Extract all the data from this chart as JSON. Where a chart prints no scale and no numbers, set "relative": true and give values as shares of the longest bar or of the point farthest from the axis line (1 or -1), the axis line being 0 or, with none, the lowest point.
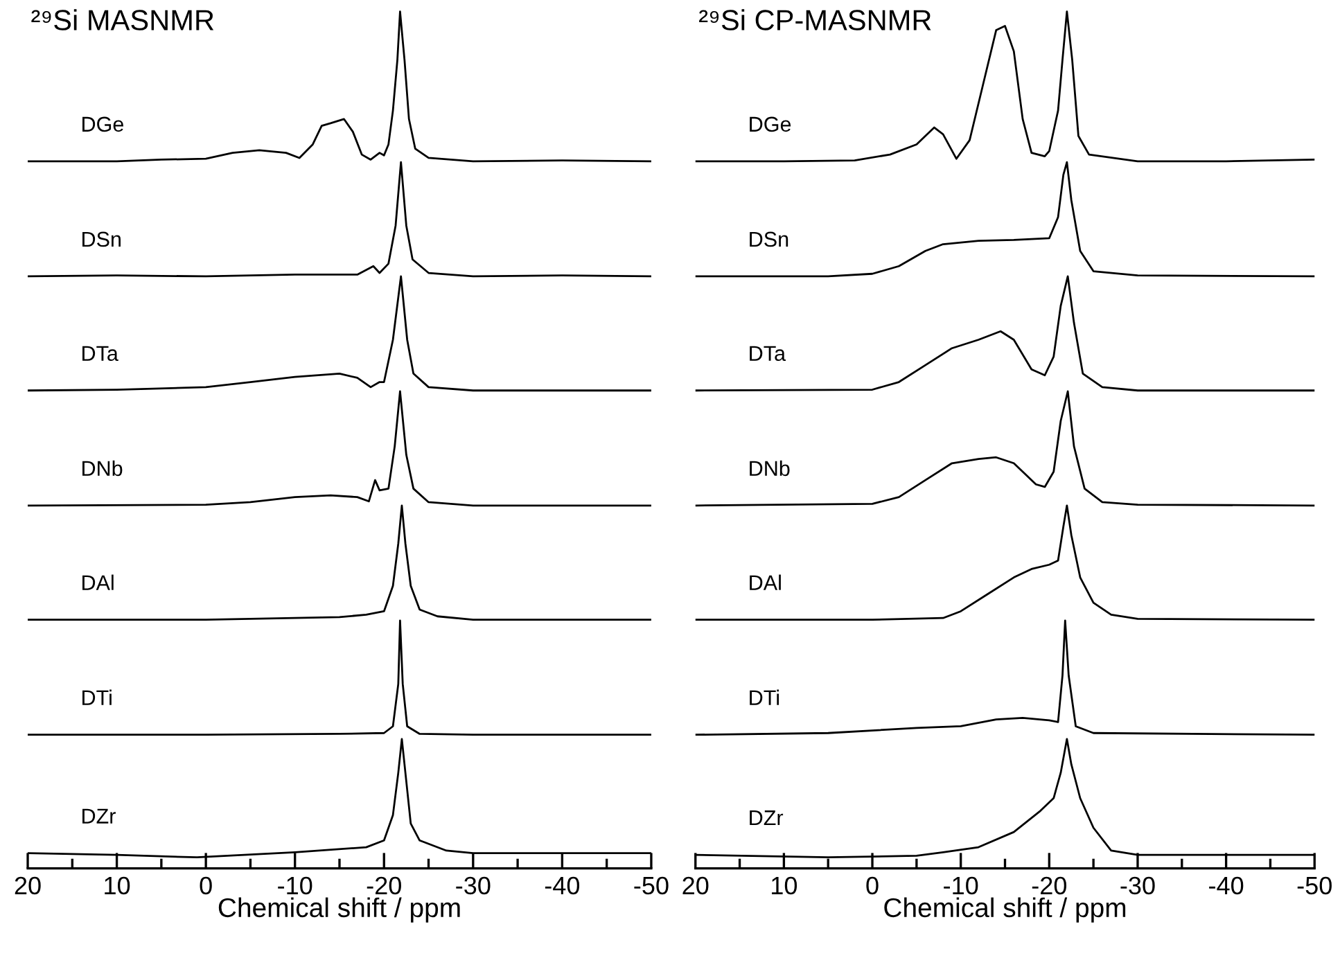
{
  "chart_data": [
    {
      "type": "line",
      "title": "²⁹Si MASNMR",
      "xlabel": "Chemical shift / ppm",
      "relative": true,
      "xlim": [
        20,
        -50
      ],
      "xticks": [
        20,
        {
          "value": 15,
          "label": null
        },
        10,
        {
          "value": 5,
          "label": null
        },
        0,
        {
          "value": -5,
          "label": null
        },
        -10,
        {
          "value": -15,
          "label": null
        },
        -20,
        {
          "value": -25,
          "label": null
        },
        -30,
        {
          "value": -35,
          "label": null
        },
        -40,
        {
          "value": -45,
          "label": null
        },
        -50
      ],
      "grid": false,
      "legend": false,
      "marker": "none",
      "line_style": "solid",
      "series": [
        {
          "name": "DGe",
          "color": "#000000",
          "x": [
            20,
            10,
            5,
            0,
            -3,
            -6,
            -9,
            -10.5,
            -12,
            -13,
            -14,
            -15.5,
            -16.5,
            -17.5,
            -18.5,
            -19.5,
            -20,
            -20.5,
            -21,
            -21.5,
            -21.8,
            -22.3,
            -22.8,
            -23.5,
            -25,
            -30,
            -40,
            -50
          ],
          "values": [
            0.823,
            0.823,
            0.825,
            0.826,
            0.833,
            0.836,
            0.833,
            0.827,
            0.843,
            0.865,
            0.868,
            0.873,
            0.858,
            0.831,
            0.825,
            0.833,
            0.83,
            0.843,
            0.883,
            0.943,
            1.0,
            0.943,
            0.873,
            0.838,
            0.827,
            0.823,
            0.824,
            0.823
          ]
        },
        {
          "name": "DSn",
          "color": "#000000",
          "x": [
            20,
            10,
            0,
            -10,
            -17,
            -18.8,
            -19.5,
            -20.5,
            -21.3,
            -21.9,
            -22.5,
            -23.2,
            -25,
            -30,
            -40,
            -50
          ],
          "values": [
            0.687,
            0.688,
            0.687,
            0.689,
            0.689,
            0.699,
            0.691,
            0.702,
            0.747,
            0.822,
            0.747,
            0.707,
            0.691,
            0.687,
            0.688,
            0.687
          ]
        },
        {
          "name": "DTa",
          "color": "#000000",
          "x": [
            20,
            10,
            0,
            -5,
            -10,
            -15,
            -17,
            -18.5,
            -19.5,
            -20,
            -21,
            -21.9,
            -22.6,
            -23.3,
            -25,
            -30,
            -40,
            -50
          ],
          "values": [
            0.552,
            0.553,
            0.556,
            0.562,
            0.568,
            0.572,
            0.567,
            0.556,
            0.562,
            0.562,
            0.612,
            0.687,
            0.612,
            0.572,
            0.556,
            0.552,
            0.552,
            0.552
          ]
        },
        {
          "name": "DNb",
          "color": "#000000",
          "x": [
            20,
            0,
            -5,
            -10,
            -14,
            -17,
            -18.3,
            -19,
            -19.5,
            -20.5,
            -21.2,
            -21.8,
            -22.5,
            -23.3,
            -25,
            -30,
            -50
          ],
          "values": [
            0.416,
            0.417,
            0.42,
            0.426,
            0.428,
            0.426,
            0.421,
            0.446,
            0.434,
            0.436,
            0.486,
            0.551,
            0.476,
            0.436,
            0.42,
            0.416,
            0.416
          ]
        },
        {
          "name": "DAl",
          "color": "#000000",
          "x": [
            20,
            0,
            -10,
            -15,
            -18,
            -20,
            -21,
            -21.6,
            -22,
            -22.4,
            -23,
            -24,
            -26,
            -30,
            -50
          ],
          "values": [
            0.281,
            0.281,
            0.283,
            0.284,
            0.287,
            0.291,
            0.321,
            0.371,
            0.416,
            0.371,
            0.321,
            0.293,
            0.285,
            0.281,
            0.281
          ]
        },
        {
          "name": "DTi",
          "color": "#000000",
          "x": [
            20,
            0,
            -15,
            -20,
            -21,
            -21.6,
            -21.8,
            -22.1,
            -22.6,
            -24,
            -30,
            -50
          ],
          "values": [
            0.145,
            0.145,
            0.146,
            0.147,
            0.155,
            0.205,
            0.28,
            0.205,
            0.155,
            0.146,
            0.145,
            0.145
          ]
        },
        {
          "name": "DZr",
          "color": "#000000",
          "x": [
            20,
            10,
            1,
            -10,
            -18,
            -20,
            -21,
            -21.6,
            -22,
            -22.5,
            -23,
            -24,
            -27,
            -30,
            -50
          ],
          "values": [
            0.005,
            0.003,
            0.0,
            0.006,
            0.012,
            0.02,
            0.05,
            0.1,
            0.14,
            0.09,
            0.04,
            0.02,
            0.008,
            0.005,
            0.005
          ]
        }
      ]
    },
    {
      "type": "line",
      "title": "²⁹Si CP-MASNMR",
      "xlabel": "Chemical shift / ppm",
      "relative": true,
      "xlim": [
        20,
        -50
      ],
      "xticks": [
        20,
        {
          "value": 15,
          "label": null
        },
        10,
        {
          "value": 5,
          "label": null
        },
        0,
        {
          "value": -5,
          "label": null
        },
        -10,
        {
          "value": -15,
          "label": null
        },
        -20,
        {
          "value": -25,
          "label": null
        },
        -30,
        {
          "value": -35,
          "label": null
        },
        -40,
        {
          "value": -45,
          "label": null
        },
        -50
      ],
      "grid": false,
      "legend": false,
      "marker": "none",
      "line_style": "solid",
      "series": [
        {
          "name": "DGe",
          "color": "#000000",
          "x": [
            20,
            10,
            2,
            -2,
            -5,
            -7,
            -8,
            -9.5,
            -11,
            -12.5,
            -14,
            -15,
            -16,
            -17,
            -18,
            -19.5,
            -20,
            -21,
            -21.5,
            -22,
            -22.6,
            -23.3,
            -24.5,
            -30,
            -40,
            -50
          ],
          "values": [
            0.823,
            0.823,
            0.824,
            0.831,
            0.843,
            0.863,
            0.855,
            0.826,
            0.848,
            0.913,
            0.978,
            0.983,
            0.953,
            0.873,
            0.833,
            0.829,
            0.835,
            0.883,
            0.943,
            1.0,
            0.943,
            0.853,
            0.831,
            0.823,
            0.823,
            0.825
          ]
        },
        {
          "name": "DSn",
          "color": "#000000",
          "x": [
            20,
            5,
            0,
            -3,
            -6,
            -8,
            -12,
            -16,
            -20,
            -21,
            -21.6,
            -22,
            -22.5,
            -23.5,
            -25,
            -30,
            -50
          ],
          "values": [
            0.687,
            0.687,
            0.69,
            0.699,
            0.717,
            0.725,
            0.729,
            0.73,
            0.732,
            0.757,
            0.807,
            0.822,
            0.777,
            0.717,
            0.693,
            0.688,
            0.687
          ]
        },
        {
          "name": "DTa",
          "color": "#000000",
          "x": [
            20,
            0,
            -3,
            -6,
            -9,
            -12,
            -14.5,
            -16,
            -18,
            -19.5,
            -20.5,
            -21.3,
            -22.1,
            -22.8,
            -23.8,
            -26,
            -30,
            -50
          ],
          "values": [
            0.552,
            0.553,
            0.562,
            0.582,
            0.602,
            0.612,
            0.622,
            0.612,
            0.577,
            0.57,
            0.592,
            0.652,
            0.687,
            0.632,
            0.572,
            0.556,
            0.552,
            0.552
          ]
        },
        {
          "name": "DNb",
          "color": "#000000",
          "x": [
            20,
            0,
            -3,
            -6,
            -9,
            -12,
            -14,
            -16,
            -18.5,
            -19.5,
            -20.5,
            -21.3,
            -22.1,
            -22.8,
            -24,
            -26,
            -30,
            -50
          ],
          "values": [
            0.416,
            0.418,
            0.426,
            0.446,
            0.466,
            0.471,
            0.473,
            0.466,
            0.441,
            0.438,
            0.456,
            0.516,
            0.551,
            0.486,
            0.436,
            0.42,
            0.417,
            0.416
          ]
        },
        {
          "name": "DAl",
          "color": "#000000",
          "x": [
            20,
            0,
            -8,
            -10,
            -13,
            -16,
            -18,
            -20,
            -21,
            -21.6,
            -22,
            -22.5,
            -23.5,
            -25,
            -27,
            -30,
            -50
          ],
          "values": [
            0.281,
            0.281,
            0.283,
            0.291,
            0.311,
            0.331,
            0.341,
            0.346,
            0.351,
            0.391,
            0.416,
            0.381,
            0.331,
            0.301,
            0.287,
            0.282,
            0.281
          ]
        },
        {
          "name": "DTi",
          "color": "#000000",
          "x": [
            20,
            5,
            -5,
            -10,
            -14,
            -17,
            -20,
            -21,
            -21.5,
            -21.8,
            -22.2,
            -23,
            -25,
            -50
          ],
          "values": [
            0.145,
            0.147,
            0.153,
            0.155,
            0.163,
            0.165,
            0.162,
            0.16,
            0.215,
            0.28,
            0.215,
            0.155,
            0.147,
            0.145
          ]
        },
        {
          "name": "DZr",
          "color": "#000000",
          "x": [
            20,
            5,
            -5,
            -8,
            -12,
            -16,
            -19,
            -20.5,
            -21.3,
            -22,
            -22.5,
            -23.5,
            -25,
            -27,
            -30,
            -50
          ],
          "values": [
            0.003,
            0.0,
            0.002,
            0.006,
            0.012,
            0.03,
            0.055,
            0.07,
            0.1,
            0.14,
            0.11,
            0.07,
            0.035,
            0.008,
            0.003,
            0.003
          ]
        }
      ]
    }
  ]
}
